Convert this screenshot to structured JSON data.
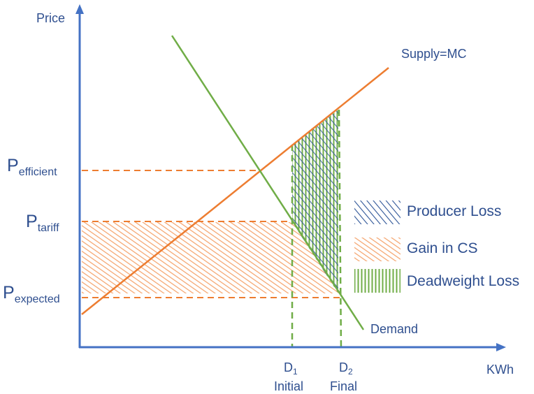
{
  "axes": {
    "y_label": "Price",
    "x_label": "KWh"
  },
  "curves": {
    "supply_label": "Supply=MC",
    "demand_label": "Demand"
  },
  "prices": {
    "efficient": {
      "main": "P",
      "sub": "efficient"
    },
    "tariff": {
      "main": "P",
      "sub": "tariff"
    },
    "expected": {
      "main": "P",
      "sub": "expected"
    }
  },
  "quantities": {
    "d1": {
      "main": "D",
      "sub": "1",
      "caption": "Initial"
    },
    "d2": {
      "main": "D",
      "sub": "2",
      "caption": "Final"
    }
  },
  "legend": [
    {
      "label": "Producer Loss",
      "color": "#2e5597"
    },
    {
      "label": "Gain in CS",
      "color": "#ed7d31"
    },
    {
      "label": "Deadweight Loss",
      "color": "#70ad47"
    }
  ],
  "colors": {
    "axis": "#4472c4",
    "supply": "#ed7d31",
    "demand": "#70ad47",
    "text": "#2f4f8f"
  }
}
